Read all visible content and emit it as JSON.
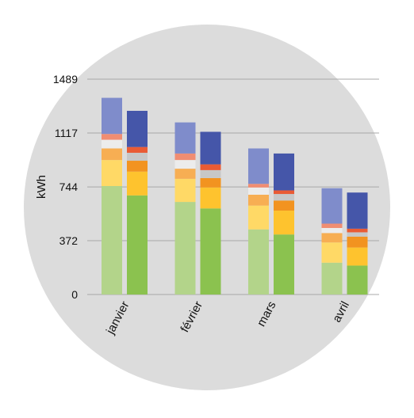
{
  "chart_data": {
    "type": "bar",
    "stacked": true,
    "paired": true,
    "ylabel": "kWh",
    "xlabel": "",
    "ylim": [
      0,
      1489
    ],
    "yticks": [
      "0",
      "372",
      "744",
      "1117",
      "1489"
    ],
    "ytick_values": [
      0,
      372,
      744,
      1117,
      1489
    ],
    "grid": true,
    "background_circle": "#dcdcdc",
    "categories": [
      "janvier",
      "février",
      "mars",
      "avril"
    ],
    "segment_colors": {
      "light": [
        "#b3d48a",
        "#ffd966",
        "#f7ae53",
        "#ececec",
        "#c8b7a8",
        "#f08d72",
        "#7f8ccb"
      ],
      "dark": [
        "#8bc24f",
        "#fec32e",
        "#f29320",
        "#c7c7c7",
        "#ae8466",
        "#e95b35",
        "#4556a9"
      ]
    },
    "bars": [
      {
        "category": "janvier",
        "variant": "light",
        "segments": [
          750,
          180,
          80,
          60,
          0,
          40,
          250
        ]
      },
      {
        "category": "janvier",
        "variant": "dark",
        "segments": [
          685,
          165,
          75,
          55,
          0,
          40,
          250
        ]
      },
      {
        "category": "février",
        "variant": "light",
        "segments": [
          640,
          160,
          70,
          60,
          0,
          45,
          215
        ]
      },
      {
        "category": "février",
        "variant": "dark",
        "segments": [
          595,
          145,
          65,
          55,
          0,
          40,
          225
        ]
      },
      {
        "category": "mars",
        "variant": "light",
        "segments": [
          450,
          165,
          75,
          50,
          0,
          25,
          245
        ]
      },
      {
        "category": "mars",
        "variant": "dark",
        "segments": [
          415,
          165,
          70,
          45,
          0,
          25,
          255
        ]
      },
      {
        "category": "avril",
        "variant": "light",
        "segments": [
          220,
          140,
          65,
          35,
          0,
          30,
          245
        ]
      },
      {
        "category": "avril",
        "variant": "dark",
        "segments": [
          200,
          125,
          75,
          30,
          0,
          25,
          250
        ]
      }
    ]
  }
}
